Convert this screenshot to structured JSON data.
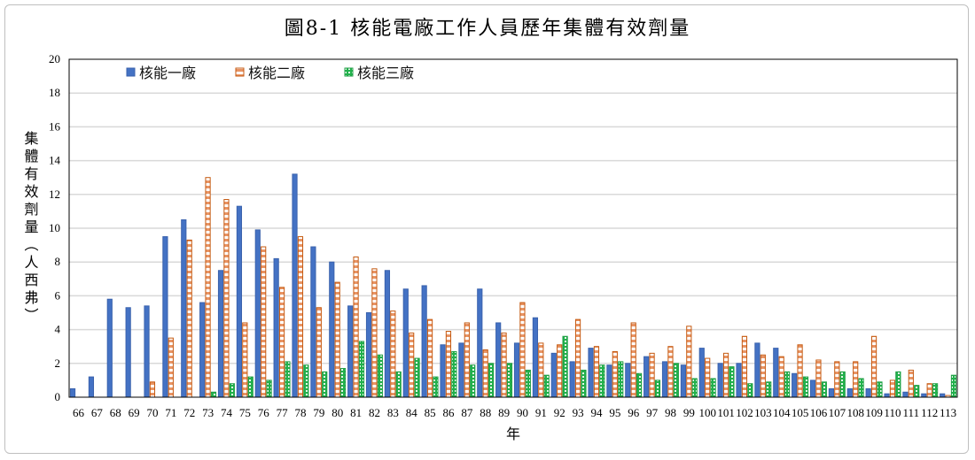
{
  "chart_data": {
    "type": "bar",
    "title": "圖8-1 核能電廠工作人員歷年集體有效劑量",
    "xlabel": "年",
    "ylabel": "集體有效劑量（人西弗）",
    "ylim": [
      0,
      20
    ],
    "yticks": [
      0,
      2,
      4,
      6,
      8,
      10,
      12,
      14,
      16,
      18,
      20
    ],
    "grid": true,
    "legend_position": "top-left",
    "categories": [
      "66",
      "67",
      "68",
      "69",
      "70",
      "71",
      "72",
      "73",
      "74",
      "75",
      "76",
      "77",
      "78",
      "79",
      "80",
      "81",
      "82",
      "83",
      "84",
      "85",
      "86",
      "87",
      "88",
      "89",
      "90",
      "91",
      "92",
      "93",
      "94",
      "95",
      "96",
      "97",
      "98",
      "99",
      "100",
      "101",
      "102",
      "103",
      "104",
      "105",
      "106",
      "107",
      "108",
      "109",
      "110",
      "111",
      "112",
      "113"
    ],
    "series": [
      {
        "name": "核能一廠",
        "color": "#4472c4",
        "values": [
          0.5,
          1.2,
          5.8,
          5.3,
          5.4,
          9.5,
          10.5,
          5.6,
          7.5,
          11.3,
          9.9,
          8.2,
          13.2,
          8.9,
          8.0,
          5.4,
          5.0,
          7.5,
          6.4,
          6.6,
          3.1,
          3.2,
          6.4,
          4.4,
          3.2,
          4.7,
          2.6,
          2.1,
          2.9,
          1.9,
          2.0,
          2.4,
          2.1,
          1.9,
          2.9,
          2.0,
          2.0,
          3.2,
          2.9,
          1.4,
          1.0,
          0.5,
          0.5,
          0.5,
          0.2,
          0.3,
          0.2,
          0.2
        ]
      },
      {
        "name": "核能二廠",
        "color": "#c55a11",
        "values": [
          0,
          0,
          0,
          0,
          0.9,
          3.5,
          9.3,
          13.0,
          11.7,
          4.4,
          8.9,
          6.5,
          9.5,
          5.3,
          6.8,
          8.3,
          7.6,
          5.1,
          3.8,
          4.6,
          3.9,
          4.4,
          2.8,
          3.8,
          5.6,
          3.2,
          3.1,
          4.6,
          3.0,
          2.7,
          4.4,
          2.6,
          3.0,
          4.2,
          2.3,
          2.6,
          3.6,
          2.5,
          2.4,
          3.1,
          2.2,
          2.1,
          2.1,
          3.6,
          1.0,
          1.6,
          0.8,
          0.1
        ]
      },
      {
        "name": "核能三廠",
        "color": "#22b14c",
        "values": [
          0,
          0,
          0,
          0,
          0,
          0,
          0,
          0.3,
          0.8,
          1.2,
          1.0,
          2.1,
          1.9,
          1.5,
          1.7,
          3.3,
          2.5,
          1.5,
          2.3,
          1.2,
          2.7,
          1.9,
          2.0,
          2.0,
          1.6,
          1.3,
          3.6,
          1.6,
          1.9,
          2.1,
          1.4,
          1.0,
          2.0,
          1.1,
          1.1,
          1.8,
          0.8,
          0.9,
          1.5,
          1.2,
          0.9,
          1.5,
          1.1,
          0.9,
          1.5,
          0.7,
          0.8,
          1.3
        ]
      }
    ]
  }
}
